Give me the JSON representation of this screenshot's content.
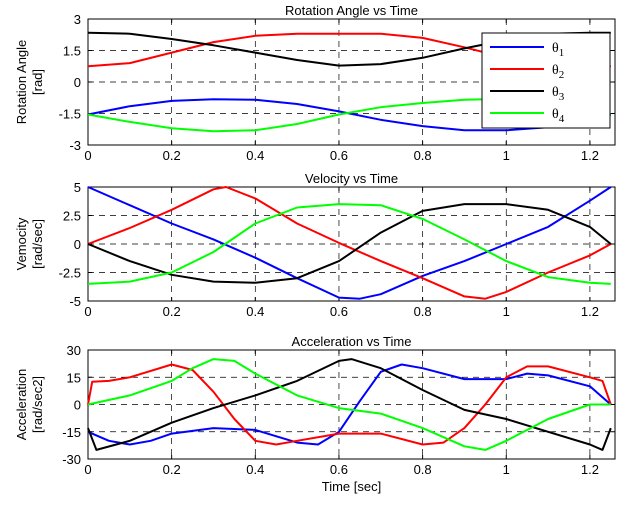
{
  "chart_data": [
    {
      "type": "line",
      "title": "Rotation Angle vs Time",
      "xlabel": "",
      "ylabel": [
        "Rotation Angle",
        "[rad]"
      ],
      "xlim": [
        0,
        1.26
      ],
      "ylim": [
        -3,
        3
      ],
      "xticks": [
        0,
        0.2,
        0.4,
        0.6,
        0.8,
        1,
        1.2
      ],
      "xtick_labels": [
        "0",
        "0.2",
        "0.4",
        "0.6",
        "0.8",
        "1",
        "1.2"
      ],
      "yticks": [
        -3,
        -1.5,
        0,
        1.5,
        3
      ],
      "ytick_labels": [
        "-3",
        "-1.5",
        "0",
        "1.5",
        "3"
      ],
      "grid": true,
      "legend": "top-right",
      "series": [
        {
          "name": "θ1",
          "sub": "1",
          "color": "#0000ff",
          "x": [
            0,
            0.1,
            0.2,
            0.3,
            0.4,
            0.5,
            0.6,
            0.7,
            0.8,
            0.9,
            1.0,
            1.1,
            1.2,
            1.25
          ],
          "y": [
            -1.55,
            -1.15,
            -0.9,
            -0.82,
            -0.85,
            -1.05,
            -1.4,
            -1.8,
            -2.1,
            -2.3,
            -2.3,
            -2.15,
            -1.8,
            -1.55
          ]
        },
        {
          "name": "θ2",
          "sub": "2",
          "color": "#ff0000",
          "x": [
            0,
            0.1,
            0.2,
            0.3,
            0.4,
            0.5,
            0.6,
            0.7,
            0.8,
            0.9,
            1.0,
            1.1,
            1.2,
            1.25
          ],
          "y": [
            0.75,
            0.9,
            1.4,
            1.9,
            2.2,
            2.3,
            2.3,
            2.3,
            2.1,
            1.65,
            1.15,
            0.85,
            0.78,
            0.75
          ]
        },
        {
          "name": "θ3",
          "sub": "3",
          "color": "#000000",
          "x": [
            0,
            0.1,
            0.2,
            0.3,
            0.4,
            0.5,
            0.6,
            0.7,
            0.8,
            0.9,
            1.0,
            1.1,
            1.2,
            1.25
          ],
          "y": [
            2.35,
            2.3,
            2.05,
            1.75,
            1.4,
            1.05,
            0.78,
            0.85,
            1.15,
            1.6,
            2.0,
            2.3,
            2.35,
            2.35
          ]
        },
        {
          "name": "θ4",
          "sub": "4",
          "color": "#00ff00",
          "x": [
            0,
            0.1,
            0.2,
            0.3,
            0.4,
            0.5,
            0.6,
            0.7,
            0.8,
            0.9,
            1.0,
            1.1,
            1.2,
            1.25
          ],
          "y": [
            -1.55,
            -1.9,
            -2.2,
            -2.35,
            -2.3,
            -2.0,
            -1.55,
            -1.2,
            -1.0,
            -0.85,
            -0.8,
            -0.9,
            -1.25,
            -1.55
          ]
        }
      ]
    },
    {
      "type": "line",
      "title": "Velocity vs Time",
      "xlabel": "",
      "ylabel": [
        "Vemocity",
        "[rad/sec]"
      ],
      "xlim": [
        0,
        1.26
      ],
      "ylim": [
        -5,
        5
      ],
      "xticks": [
        0,
        0.2,
        0.4,
        0.6,
        0.8,
        1,
        1.2
      ],
      "xtick_labels": [
        "0",
        "0.2",
        "0.4",
        "0.6",
        "0.8",
        "1",
        "1.2"
      ],
      "yticks": [
        -5,
        -2.5,
        0,
        2.5,
        5
      ],
      "ytick_labels": [
        "-5",
        "-2.5",
        "0",
        "2.5",
        "5"
      ],
      "grid": true,
      "series": [
        {
          "name": "θ1",
          "color": "#0000ff",
          "x": [
            0,
            0.1,
            0.2,
            0.3,
            0.4,
            0.5,
            0.6,
            0.65,
            0.7,
            0.8,
            0.9,
            1.0,
            1.1,
            1.2,
            1.25
          ],
          "y": [
            5,
            3.4,
            1.8,
            0.4,
            -1.2,
            -3.0,
            -4.7,
            -4.8,
            -4.4,
            -2.8,
            -1.5,
            0.0,
            1.5,
            3.8,
            5.0
          ]
        },
        {
          "name": "θ2",
          "color": "#ff0000",
          "x": [
            0,
            0.1,
            0.2,
            0.3,
            0.33,
            0.4,
            0.5,
            0.6,
            0.7,
            0.8,
            0.9,
            0.95,
            1.0,
            1.1,
            1.2,
            1.25
          ],
          "y": [
            0,
            1.4,
            3.0,
            4.8,
            5.0,
            4.0,
            1.8,
            0.1,
            -1.5,
            -3.0,
            -4.6,
            -4.8,
            -4.2,
            -2.5,
            -1.0,
            0.0
          ]
        },
        {
          "name": "θ3",
          "color": "#000000",
          "x": [
            0,
            0.1,
            0.2,
            0.3,
            0.4,
            0.5,
            0.6,
            0.7,
            0.8,
            0.9,
            1.0,
            1.1,
            1.2,
            1.25
          ],
          "y": [
            0,
            -1.5,
            -2.7,
            -3.3,
            -3.4,
            -3.0,
            -1.5,
            1.0,
            2.9,
            3.5,
            3.5,
            3.0,
            1.5,
            0.0
          ]
        },
        {
          "name": "θ4",
          "color": "#00ff00",
          "x": [
            0,
            0.1,
            0.2,
            0.3,
            0.4,
            0.5,
            0.6,
            0.7,
            0.8,
            0.9,
            1.0,
            1.1,
            1.2,
            1.25
          ],
          "y": [
            -3.5,
            -3.3,
            -2.5,
            -0.7,
            1.8,
            3.2,
            3.5,
            3.4,
            2.2,
            0.4,
            -1.5,
            -2.9,
            -3.4,
            -3.5
          ]
        }
      ]
    },
    {
      "type": "line",
      "title": "Acceleration vs Time",
      "xlabel": "Time [sec]",
      "ylabel": [
        "Acceleration",
        "[rad/sec2]"
      ],
      "xlim": [
        0,
        1.26
      ],
      "ylim": [
        -30,
        30
      ],
      "xticks": [
        0,
        0.2,
        0.4,
        0.6,
        0.8,
        1,
        1.2
      ],
      "xtick_labels": [
        "0",
        "0.2",
        "0.4",
        "0.6",
        "0.8",
        "1",
        "1.2"
      ],
      "yticks": [
        -30,
        -15,
        0,
        15,
        30
      ],
      "ytick_labels": [
        "-30",
        "-15",
        "0",
        "15",
        "30"
      ],
      "grid": true,
      "series": [
        {
          "name": "θ1",
          "color": "#0000ff",
          "x": [
            0,
            0.05,
            0.1,
            0.15,
            0.2,
            0.3,
            0.4,
            0.5,
            0.55,
            0.6,
            0.65,
            0.7,
            0.75,
            0.8,
            0.9,
            1.0,
            1.05,
            1.1,
            1.2,
            1.24,
            1.25
          ],
          "y": [
            -15,
            -20,
            -22,
            -20,
            -16,
            -13,
            -14,
            -21,
            -22,
            -15,
            2,
            18,
            22,
            20,
            14,
            14,
            17,
            16,
            10,
            2,
            0
          ]
        },
        {
          "name": "θ2",
          "color": "#ff0000",
          "x": [
            0,
            0.01,
            0.05,
            0.1,
            0.2,
            0.25,
            0.3,
            0.35,
            0.4,
            0.45,
            0.5,
            0.6,
            0.7,
            0.8,
            0.85,
            0.9,
            0.95,
            1.0,
            1.05,
            1.1,
            1.2,
            1.23,
            1.25
          ],
          "y": [
            0,
            12.5,
            13,
            15,
            22,
            19,
            7,
            -8,
            -20,
            -22,
            -20,
            -16,
            -16,
            -22,
            -21,
            -13,
            0,
            15,
            21,
            21,
            15,
            13,
            0
          ]
        },
        {
          "name": "θ3",
          "color": "#000000",
          "x": [
            0,
            0.02,
            0.1,
            0.2,
            0.3,
            0.4,
            0.5,
            0.6,
            0.63,
            0.7,
            0.8,
            0.9,
            1.0,
            1.1,
            1.2,
            1.23,
            1.25
          ],
          "y": [
            -13,
            -25,
            -20,
            -10,
            -2,
            5,
            13,
            24,
            25,
            20,
            8,
            -3,
            -8,
            -15,
            -22,
            -25,
            -13
          ]
        },
        {
          "name": "θ4",
          "color": "#00ff00",
          "x": [
            0,
            0.1,
            0.2,
            0.25,
            0.3,
            0.35,
            0.4,
            0.5,
            0.6,
            0.7,
            0.8,
            0.9,
            0.95,
            1.0,
            1.1,
            1.2,
            1.25
          ],
          "y": [
            0,
            5,
            13,
            20,
            25,
            24,
            17,
            5,
            -2,
            -5,
            -13,
            -23,
            -25,
            -20,
            -8,
            0,
            0
          ]
        }
      ]
    }
  ]
}
